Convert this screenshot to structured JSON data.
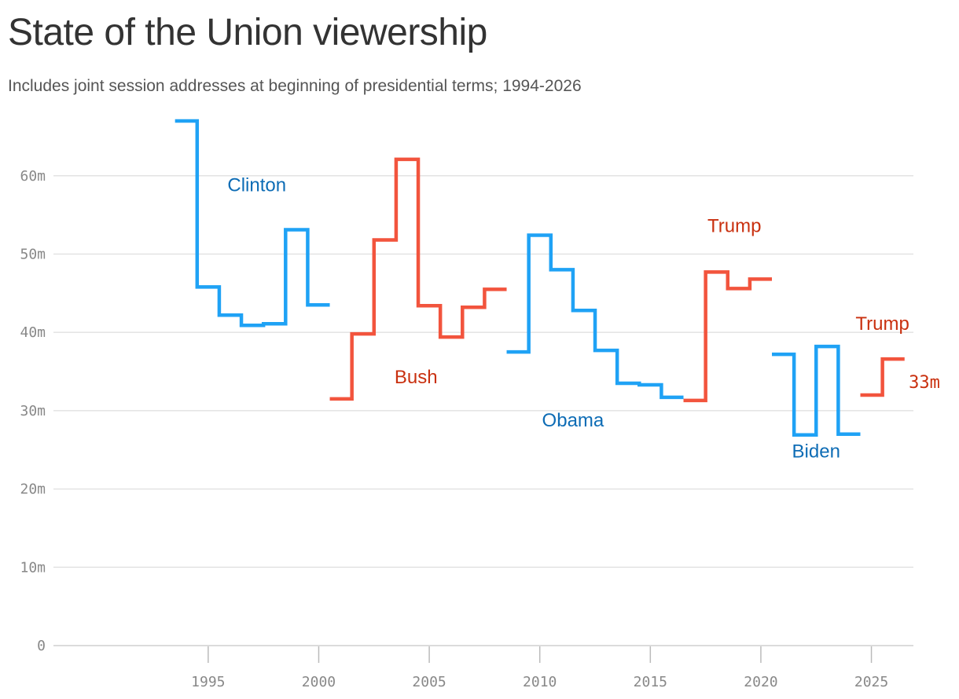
{
  "chart_data": {
    "type": "line",
    "line_style": "step",
    "title": "State of the Union viewership",
    "subtitle": "Includes joint session addresses at beginning of presidential terms; 1994-2026",
    "y_unit": "m",
    "ylim": [
      0,
      68
    ],
    "xlim": [
      1993,
      2026.5
    ],
    "y_ticks": [
      0,
      10,
      20,
      30,
      40,
      50,
      60
    ],
    "y_tick_labels": [
      "0",
      "10m",
      "20m",
      "30m",
      "40m",
      "50m",
      "60m"
    ],
    "x_ticks": [
      1995,
      2000,
      2005,
      2010,
      2015,
      2020,
      2025
    ],
    "x_tick_labels": [
      "1995",
      "2000",
      "2005",
      "2010",
      "2015",
      "2020",
      "2025"
    ],
    "grid": true,
    "colors": {
      "democrat": "#1fa2f5",
      "republican": "#f2543d",
      "democrat_label": "#0d6cb5",
      "republican_label": "#c9300f"
    },
    "series": [
      {
        "party": "democrat",
        "steps": [
          [
            1993.5,
            67.0
          ],
          [
            1994.5,
            45.8
          ],
          [
            1995.5,
            42.2
          ],
          [
            1996.5,
            40.9
          ],
          [
            1997.5,
            41.1
          ],
          [
            1998.5,
            53.1
          ],
          [
            1999.5,
            43.5
          ],
          [
            2000.5,
            31.5
          ]
        ]
      },
      {
        "party": "republican",
        "steps": [
          [
            2000.5,
            31.5
          ],
          [
            2001.5,
            39.8
          ],
          [
            2002.5,
            51.8
          ],
          [
            2003.5,
            62.1
          ],
          [
            2004.5,
            43.4
          ],
          [
            2005.5,
            39.4
          ],
          [
            2006.5,
            43.2
          ],
          [
            2007.5,
            45.5
          ],
          [
            2008.5,
            37.5
          ]
        ]
      },
      {
        "party": "democrat",
        "steps": [
          [
            2008.5,
            37.5
          ],
          [
            2009.5,
            52.4
          ],
          [
            2010.5,
            48.0
          ],
          [
            2011.5,
            42.8
          ],
          [
            2012.5,
            37.7
          ],
          [
            2013.5,
            33.5
          ],
          [
            2014.5,
            33.3
          ],
          [
            2015.5,
            31.7
          ],
          [
            2016.5,
            31.3
          ]
        ]
      },
      {
        "party": "republican",
        "steps": [
          [
            2016.5,
            31.3
          ],
          [
            2017.5,
            47.7
          ],
          [
            2018.5,
            45.6
          ],
          [
            2019.5,
            46.8
          ],
          [
            2020.5,
            37.2
          ]
        ]
      },
      {
        "party": "democrat",
        "steps": [
          [
            2020.5,
            37.2
          ],
          [
            2021.5,
            26.9
          ],
          [
            2022.5,
            38.2
          ],
          [
            2023.5,
            27.0
          ],
          [
            2024.5,
            32.0
          ]
        ]
      },
      {
        "party": "republican",
        "steps": [
          [
            2024.5,
            32.0
          ],
          [
            2025.5,
            36.6
          ],
          [
            2026.5,
            32.6
          ]
        ]
      }
    ],
    "annotations": [
      {
        "text": "Clinton",
        "party": "democrat",
        "x": 1997.2,
        "y": 58.0
      },
      {
        "text": "Bush",
        "party": "republican",
        "x": 2004.4,
        "y": 33.5
      },
      {
        "text": "Obama",
        "party": "democrat",
        "x": 2011.5,
        "y": 28.0
      },
      {
        "text": "Trump",
        "party": "republican",
        "x": 2018.8,
        "y": 52.8
      },
      {
        "text": "Biden",
        "party": "democrat",
        "x": 2022.5,
        "y": 24.0
      },
      {
        "text": "Trump",
        "party": "republican",
        "x": 2025.5,
        "y": 40.3
      }
    ],
    "end_label": {
      "text": "33m",
      "party": "republican",
      "x": 2027.4,
      "y": 32.9
    }
  }
}
